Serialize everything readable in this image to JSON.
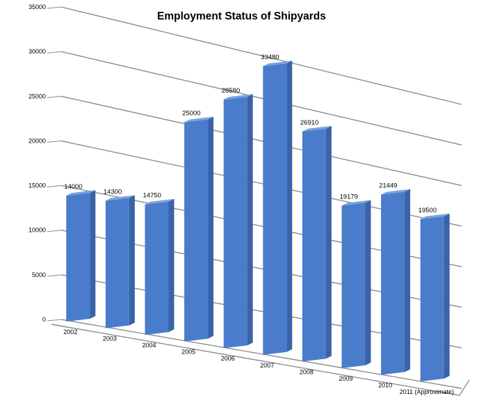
{
  "chart_data": {
    "type": "bar",
    "title": "Employment Status of Shipyards",
    "xlabel": "",
    "ylabel": "",
    "ylim": [
      0,
      35000
    ],
    "yticks": [
      "0",
      "5000",
      "10000",
      "15000",
      "20000",
      "25000",
      "30000",
      "35000"
    ],
    "grid": true,
    "legend": "none",
    "categories": [
      "2002",
      "2003",
      "2004",
      "2005",
      "2006",
      "2007",
      "2008",
      "2009",
      "2010",
      "2011 (Approximate)"
    ],
    "values": [
      14000,
      14300,
      14750,
      25000,
      28580,
      33480,
      26910,
      19179,
      21449,
      19500
    ],
    "data_labels": [
      "14000",
      "14300",
      "14750",
      "25000",
      "28580",
      "33480",
      "26910",
      "19179",
      "21449",
      "19500"
    ],
    "colors": {
      "bar_front": "#4a7ccc",
      "bar_side": "#3a63a8",
      "bar_top": "#7aa2de",
      "grid": "#8c8c8c"
    }
  }
}
